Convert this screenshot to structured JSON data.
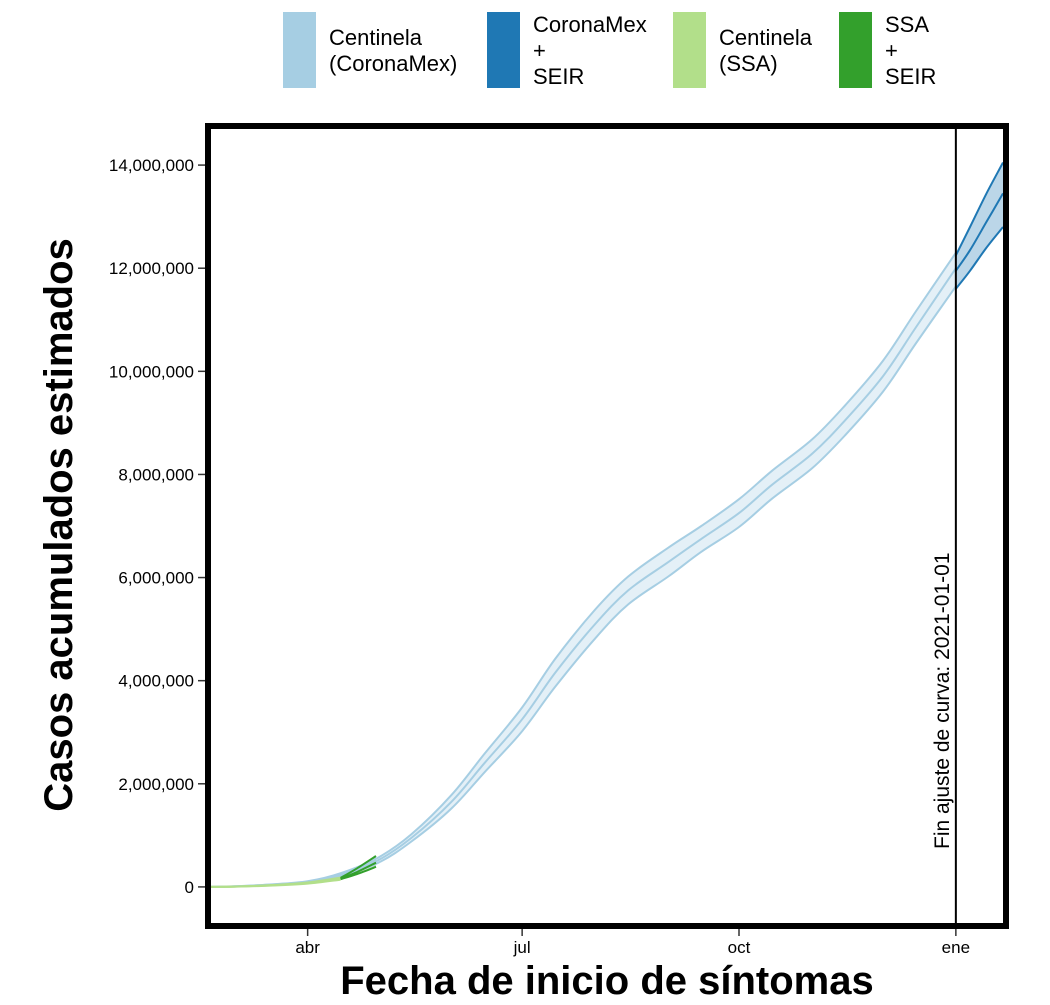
{
  "chart_data": {
    "type": "area",
    "title": "",
    "xlabel": "Fecha de inicio de síntomas",
    "ylabel": "Casos acumulados estimados",
    "x_axis": {
      "type": "date",
      "range": [
        "2020-02-20",
        "2021-01-21"
      ],
      "ticks": [
        {
          "date": "2020-04-01",
          "label": "abr"
        },
        {
          "date": "2020-07-01",
          "label": "jul"
        },
        {
          "date": "2020-10-01",
          "label": "oct"
        },
        {
          "date": "2021-01-01",
          "label": "ene"
        }
      ]
    },
    "y_axis": {
      "range": [
        -700000,
        14700000
      ],
      "ticks": [
        {
          "value": 0,
          "label": "0"
        },
        {
          "value": 2000000,
          "label": "2,000,000"
        },
        {
          "value": 4000000,
          "label": "4,000,000"
        },
        {
          "value": 6000000,
          "label": "6,000,000"
        },
        {
          "value": 8000000,
          "label": "8,000,000"
        },
        {
          "value": 10000000,
          "label": "10,000,000"
        },
        {
          "value": 12000000,
          "label": "12,000,000"
        },
        {
          "value": 14000000,
          "label": "14,000,000"
        }
      ]
    },
    "grid": false,
    "legend_position": "top",
    "legend": [
      {
        "key": "centinela_coronamex",
        "lines": [
          "Centinela",
          "(CoronaMex)"
        ],
        "color": "#A6CEE3"
      },
      {
        "key": "coronamex_seir",
        "lines": [
          "CoronaMex",
          "+",
          "SEIR"
        ],
        "color": "#1F78B4"
      },
      {
        "key": "centinela_ssa",
        "lines": [
          "Centinela",
          "(SSA)"
        ],
        "color": "#B2DF8A"
      },
      {
        "key": "ssa_seir",
        "lines": [
          "SSA",
          "+",
          "SEIR"
        ],
        "color": "#33A02C"
      }
    ],
    "vertical_line": {
      "date": "2021-01-01",
      "label": "Fin ajuste de curva: 2021-01-01"
    },
    "series": [
      {
        "key": "centinela_coronamex",
        "color": "#A6CEE3",
        "x": [
          "2020-02-20",
          "2020-03-01",
          "2020-03-15",
          "2020-04-01",
          "2020-04-15",
          "2020-05-01",
          "2020-05-15",
          "2020-06-01",
          "2020-06-15",
          "2020-07-01",
          "2020-07-15",
          "2020-08-01",
          "2020-08-15",
          "2020-09-01",
          "2020-09-15",
          "2020-10-01",
          "2020-10-15",
          "2020-11-01",
          "2020-11-15",
          "2020-12-01",
          "2020-12-15",
          "2021-01-01"
        ],
        "mid": [
          0,
          10000,
          40000,
          100000,
          240000,
          520000,
          950000,
          1650000,
          2400000,
          3250000,
          4150000,
          5100000,
          5750000,
          6300000,
          6750000,
          7250000,
          7800000,
          8400000,
          9050000,
          9900000,
          10850000,
          12000000
        ],
        "lower": [
          0,
          9000,
          35000,
          90000,
          215000,
          470000,
          880000,
          1520000,
          2220000,
          3020000,
          3880000,
          4820000,
          5480000,
          6020000,
          6500000,
          6980000,
          7530000,
          8120000,
          8760000,
          9600000,
          10540000,
          11650000
        ],
        "upper": [
          0,
          11000,
          45000,
          110000,
          265000,
          570000,
          1020000,
          1780000,
          2580000,
          3480000,
          4420000,
          5380000,
          6020000,
          6580000,
          7000000,
          7520000,
          8070000,
          8680000,
          9340000,
          10200000,
          11160000,
          12300000
        ]
      },
      {
        "key": "coronamex_seir",
        "color": "#1F78B4",
        "x": [
          "2021-01-01",
          "2021-01-07",
          "2021-01-14",
          "2021-01-21"
        ],
        "mid": [
          11950000,
          12350000,
          12900000,
          13450000
        ],
        "lower": [
          11600000,
          11950000,
          12400000,
          12800000
        ],
        "upper": [
          12250000,
          12800000,
          13450000,
          14050000
        ]
      },
      {
        "key": "centinela_ssa",
        "color": "#B2DF8A",
        "x": [
          "2020-02-20",
          "2020-03-01",
          "2020-03-15",
          "2020-04-01",
          "2020-04-15"
        ],
        "mid": [
          0,
          6000,
          28000,
          75000,
          160000
        ],
        "lower": [
          0,
          5000,
          24000,
          65000,
          140000
        ],
        "upper": [
          0,
          7000,
          32000,
          85000,
          180000
        ]
      },
      {
        "key": "ssa_seir",
        "color": "#33A02C",
        "x": [
          "2020-04-15",
          "2020-04-22",
          "2020-04-30"
        ],
        "mid": [
          160000,
          290000,
          470000
        ],
        "lower": [
          150000,
          250000,
          390000
        ],
        "upper": [
          175000,
          360000,
          600000
        ]
      }
    ]
  }
}
